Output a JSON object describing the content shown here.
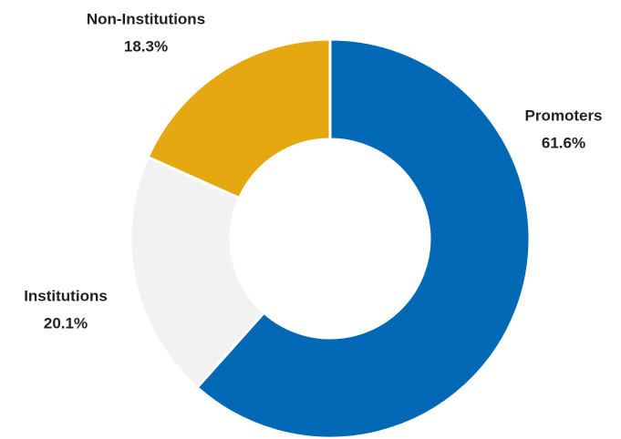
{
  "chart_data": {
    "type": "donut",
    "categories": [
      "Promoters",
      "Institutions",
      "Non-Institutions"
    ],
    "values": [
      61.6,
      20.1,
      18.3
    ],
    "value_labels": [
      "61.6%",
      "20.1%",
      "18.3%"
    ],
    "colors": [
      "#0068b5",
      "#f2f2f2",
      "#e6a811"
    ]
  }
}
